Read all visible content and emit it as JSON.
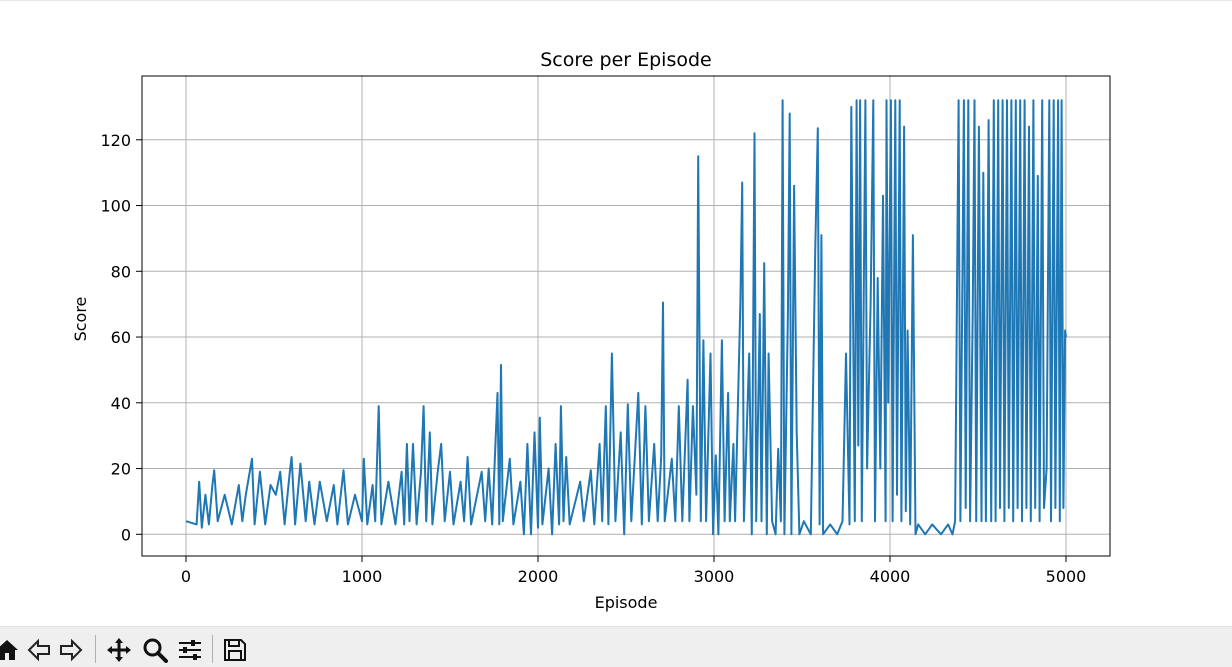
{
  "chart_data": {
    "type": "line",
    "title": "Score per Episode",
    "xlabel": "Episode",
    "ylabel": "Score",
    "xlim": [
      -250,
      5250
    ],
    "ylim": [
      -6.6,
      139.4
    ],
    "xticks": [
      0,
      1000,
      2000,
      3000,
      4000,
      5000
    ],
    "yticks": [
      0,
      20,
      40,
      60,
      80,
      100,
      120
    ],
    "grid": true,
    "line_color": "#1f77b4",
    "series": [
      {
        "values": [
          [
            0,
            4
          ],
          [
            60,
            3
          ],
          [
            75,
            16
          ],
          [
            90,
            2
          ],
          [
            110,
            12
          ],
          [
            130,
            3
          ],
          [
            150,
            15
          ],
          [
            160,
            19.5
          ],
          [
            180,
            4
          ],
          [
            220,
            12
          ],
          [
            260,
            3
          ],
          [
            300,
            15
          ],
          [
            320,
            4
          ],
          [
            340,
            12
          ],
          [
            375,
            23
          ],
          [
            390,
            3
          ],
          [
            420,
            19
          ],
          [
            450,
            3
          ],
          [
            480,
            15
          ],
          [
            510,
            12
          ],
          [
            535,
            19
          ],
          [
            560,
            3
          ],
          [
            590,
            19
          ],
          [
            600,
            23.5
          ],
          [
            620,
            3
          ],
          [
            650,
            21.5
          ],
          [
            680,
            4
          ],
          [
            700,
            16
          ],
          [
            730,
            3
          ],
          [
            760,
            16
          ],
          [
            800,
            4
          ],
          [
            840,
            15
          ],
          [
            860,
            3
          ],
          [
            895,
            19.5
          ],
          [
            920,
            3
          ],
          [
            960,
            12
          ],
          [
            1000,
            4
          ],
          [
            1010,
            23
          ],
          [
            1030,
            3
          ],
          [
            1060,
            15
          ],
          [
            1075,
            4
          ],
          [
            1095,
            39
          ],
          [
            1110,
            3
          ],
          [
            1150,
            16
          ],
          [
            1190,
            3
          ],
          [
            1225,
            19
          ],
          [
            1240,
            3
          ],
          [
            1255,
            27.5
          ],
          [
            1270,
            4
          ],
          [
            1290,
            27.5
          ],
          [
            1310,
            3
          ],
          [
            1335,
            19
          ],
          [
            1350,
            39
          ],
          [
            1365,
            4
          ],
          [
            1385,
            31
          ],
          [
            1400,
            3
          ],
          [
            1430,
            19
          ],
          [
            1450,
            27.5
          ],
          [
            1470,
            4
          ],
          [
            1500,
            19
          ],
          [
            1520,
            3
          ],
          [
            1560,
            16
          ],
          [
            1580,
            4
          ],
          [
            1600,
            23.5
          ],
          [
            1620,
            3
          ],
          [
            1680,
            19
          ],
          [
            1700,
            4
          ],
          [
            1720,
            20
          ],
          [
            1740,
            3
          ],
          [
            1770,
            43
          ],
          [
            1780,
            3
          ],
          [
            1790,
            51.5
          ],
          [
            1800,
            4
          ],
          [
            1840,
            23
          ],
          [
            1860,
            3
          ],
          [
            1900,
            16
          ],
          [
            1920,
            0
          ],
          [
            1940,
            27.5
          ],
          [
            1960,
            0
          ],
          [
            1980,
            31
          ],
          [
            2000,
            2
          ],
          [
            2010,
            35.5
          ],
          [
            2025,
            3
          ],
          [
            2060,
            20
          ],
          [
            2080,
            0
          ],
          [
            2100,
            27.5
          ],
          [
            2120,
            3
          ],
          [
            2130,
            39
          ],
          [
            2145,
            4
          ],
          [
            2160,
            23.5
          ],
          [
            2180,
            3
          ],
          [
            2240,
            16
          ],
          [
            2260,
            4
          ],
          [
            2300,
            19.5
          ],
          [
            2320,
            3
          ],
          [
            2350,
            27.5
          ],
          [
            2365,
            4
          ],
          [
            2385,
            39
          ],
          [
            2400,
            3
          ],
          [
            2420,
            55
          ],
          [
            2440,
            4
          ],
          [
            2470,
            31
          ],
          [
            2490,
            0
          ],
          [
            2510,
            39.5
          ],
          [
            2530,
            4
          ],
          [
            2570,
            43
          ],
          [
            2590,
            3
          ],
          [
            2610,
            39
          ],
          [
            2630,
            4
          ],
          [
            2660,
            27.5
          ],
          [
            2680,
            4
          ],
          [
            2700,
            23.5
          ],
          [
            2710,
            70.5
          ],
          [
            2720,
            4
          ],
          [
            2760,
            23
          ],
          [
            2780,
            4
          ],
          [
            2800,
            39
          ],
          [
            2820,
            4
          ],
          [
            2850,
            47
          ],
          [
            2860,
            4
          ],
          [
            2880,
            39
          ],
          [
            2900,
            12
          ],
          [
            2910,
            115
          ],
          [
            2925,
            4
          ],
          [
            2940,
            59
          ],
          [
            2955,
            4
          ],
          [
            2980,
            55
          ],
          [
            2995,
            0
          ],
          [
            3010,
            24
          ],
          [
            3025,
            0
          ],
          [
            3045,
            59
          ],
          [
            3060,
            4
          ],
          [
            3080,
            43
          ],
          [
            3090,
            4
          ],
          [
            3110,
            27.5
          ],
          [
            3120,
            4
          ],
          [
            3150,
            70.5
          ],
          [
            3160,
            107
          ],
          [
            3170,
            4
          ],
          [
            3200,
            55
          ],
          [
            3215,
            0
          ],
          [
            3230,
            122
          ],
          [
            3240,
            4
          ],
          [
            3260,
            67
          ],
          [
            3270,
            4
          ],
          [
            3285,
            82.5
          ],
          [
            3300,
            0
          ],
          [
            3310,
            55
          ],
          [
            3330,
            4
          ],
          [
            3350,
            0
          ],
          [
            3365,
            26
          ],
          [
            3380,
            4
          ],
          [
            3390,
            132
          ],
          [
            3400,
            0
          ],
          [
            3420,
            67
          ],
          [
            3430,
            128
          ],
          [
            3440,
            0
          ],
          [
            3455,
            106
          ],
          [
            3470,
            31
          ],
          [
            3485,
            0
          ],
          [
            3510,
            4
          ],
          [
            3550,
            0
          ],
          [
            3575,
            86
          ],
          [
            3590,
            123.5
          ],
          [
            3600,
            3
          ],
          [
            3610,
            91
          ],
          [
            3620,
            0
          ],
          [
            3660,
            3
          ],
          [
            3700,
            0
          ],
          [
            3730,
            4
          ],
          [
            3750,
            55
          ],
          [
            3770,
            3
          ],
          [
            3780,
            130
          ],
          [
            3800,
            4
          ],
          [
            3810,
            132
          ],
          [
            3820,
            27
          ],
          [
            3830,
            132
          ],
          [
            3840,
            4
          ],
          [
            3860,
            132
          ],
          [
            3870,
            20
          ],
          [
            3890,
            70
          ],
          [
            3905,
            132
          ],
          [
            3915,
            4
          ],
          [
            3930,
            78
          ],
          [
            3945,
            20
          ],
          [
            3960,
            103
          ],
          [
            3975,
            4
          ],
          [
            3980,
            132
          ],
          [
            3990,
            40
          ],
          [
            4005,
            132
          ],
          [
            4015,
            4
          ],
          [
            4030,
            132
          ],
          [
            4040,
            12
          ],
          [
            4055,
            132
          ],
          [
            4065,
            4
          ],
          [
            4080,
            124
          ],
          [
            4090,
            7
          ],
          [
            4100,
            62
          ],
          [
            4115,
            3
          ],
          [
            4130,
            91
          ],
          [
            4145,
            0
          ],
          [
            4160,
            3
          ],
          [
            4200,
            0
          ],
          [
            4240,
            3
          ],
          [
            4290,
            0
          ],
          [
            4330,
            3
          ],
          [
            4355,
            0
          ],
          [
            4370,
            4
          ],
          [
            4390,
            132
          ],
          [
            4400,
            4
          ],
          [
            4420,
            132
          ],
          [
            4430,
            8
          ],
          [
            4445,
            132
          ],
          [
            4455,
            4
          ],
          [
            4470,
            67
          ],
          [
            4480,
            132
          ],
          [
            4490,
            4
          ],
          [
            4505,
            124
          ],
          [
            4520,
            4
          ],
          [
            4530,
            110
          ],
          [
            4545,
            4
          ],
          [
            4560,
            126
          ],
          [
            4575,
            4
          ],
          [
            4590,
            132
          ],
          [
            4600,
            4
          ],
          [
            4615,
            132
          ],
          [
            4625,
            8
          ],
          [
            4640,
            132
          ],
          [
            4650,
            4
          ],
          [
            4665,
            132
          ],
          [
            4675,
            8
          ],
          [
            4690,
            132
          ],
          [
            4700,
            4
          ],
          [
            4715,
            132
          ],
          [
            4725,
            8
          ],
          [
            4740,
            132
          ],
          [
            4750,
            4
          ],
          [
            4765,
            132
          ],
          [
            4775,
            8
          ],
          [
            4790,
            124
          ],
          [
            4800,
            4
          ],
          [
            4815,
            132
          ],
          [
            4825,
            8
          ],
          [
            4840,
            109
          ],
          [
            4850,
            4
          ],
          [
            4865,
            132
          ],
          [
            4875,
            8
          ],
          [
            4890,
            20
          ],
          [
            4905,
            132
          ],
          [
            4915,
            4
          ],
          [
            4930,
            132
          ],
          [
            4940,
            8
          ],
          [
            4955,
            132
          ],
          [
            4965,
            4
          ],
          [
            4975,
            132
          ],
          [
            4985,
            8
          ],
          [
            4995,
            62
          ],
          [
            5000,
            60
          ]
        ]
      }
    ]
  }
}
